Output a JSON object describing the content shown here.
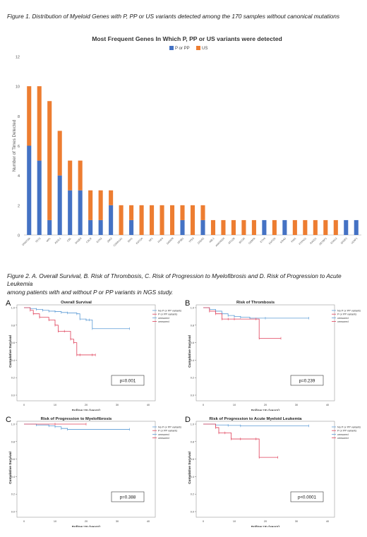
{
  "figure1": {
    "caption": "Figure 1. Distribution of Myeloid Genes with P, PP or US variants detected among the 170 samples without canonical mutations"
  },
  "figure2": {
    "caption_line1": "Figure 2. A. Overall Survival, B. Risk of Thrombosis, C. Risk of Progression to Myelofibrosis and D. Risk of Progression to Acute Leukemia",
    "caption_line2": "among patients with and without P or PP variants in NGS study."
  },
  "colors": {
    "p_pp": "#4472C4",
    "us": "#ED7D31",
    "no_variant_line": "#5B9BD5",
    "variant_line": "#E0405A"
  },
  "chart_data": [
    {
      "type": "bar",
      "stacked": true,
      "title": "Most Frequent Genes In Which P, PP or US variants were detected",
      "xlabel": "",
      "ylabel": "Number of Times Detected",
      "ylim": [
        0,
        12
      ],
      "yticks": [
        0,
        2,
        4,
        6,
        8,
        10,
        12
      ],
      "grid": false,
      "legend": "top-right",
      "categories": [
        "DNMT3A",
        "TET2",
        "MPL",
        "ASXL1",
        "CBL",
        "SH2B3",
        "CALR",
        "EZH2",
        "JAK2",
        "CSNK1A1",
        "IDH1",
        "KMT2A",
        "NF1",
        "PHF6",
        "SAMD9",
        "SF3B1",
        "TP53",
        "ZRSR2",
        "ABL1",
        "ANKRD26",
        "ATG2B",
        "BCOR",
        "CEBPA",
        "ETV6",
        "KMT2D",
        "KRAS",
        "PIM1",
        "PTPN11",
        "RAD21",
        "SETBP1",
        "STAG2",
        "SRSF2",
        "U2AF1"
      ],
      "series": [
        {
          "name": "P or PP",
          "values": [
            6,
            5,
            1,
            4,
            3,
            3,
            1,
            1,
            2,
            0,
            1,
            0,
            0,
            0,
            0,
            1,
            0,
            1,
            0,
            0,
            0,
            0,
            0,
            1,
            0,
            1,
            0,
            0,
            0,
            0,
            0,
            1,
            1
          ]
        },
        {
          "name": "US",
          "values": [
            4,
            5,
            8,
            3,
            2,
            2,
            2,
            2,
            1,
            2,
            1,
            2,
            2,
            2,
            2,
            1,
            2,
            1,
            1,
            1,
            1,
            1,
            1,
            0,
            1,
            0,
            1,
            1,
            1,
            1,
            1,
            0,
            0
          ]
        }
      ]
    },
    {
      "type": "line",
      "panel_label": "A",
      "title": "Overall Survival",
      "xlabel": "Follow Up (years)",
      "ylabel": "Cumulative Survival",
      "xlim": [
        0,
        40
      ],
      "xticks": [
        0,
        10,
        20,
        30,
        40
      ],
      "ylim": [
        0,
        1.0
      ],
      "yticks": [
        "0.0",
        "0.2",
        "0.4",
        "0.6",
        "0.8",
        "1.0"
      ],
      "p_value": "p=0.001",
      "legend_labels": [
        "No P or PP variants",
        "P or PP variants",
        "censored",
        "censored"
      ],
      "series": [
        {
          "name": "No P or PP variants",
          "x": [
            0,
            2,
            4,
            6,
            8,
            10,
            12,
            14,
            17,
            18,
            20,
            21,
            22,
            34
          ],
          "y": [
            1.0,
            0.99,
            0.98,
            0.97,
            0.96,
            0.955,
            0.945,
            0.94,
            0.93,
            0.87,
            0.86,
            0.86,
            0.76,
            0.76
          ]
        },
        {
          "name": "P or PP variants",
          "x": [
            0,
            2,
            3,
            5,
            8,
            10,
            11,
            13,
            15,
            16,
            17,
            18,
            22,
            23
          ],
          "y": [
            1.0,
            0.97,
            0.93,
            0.89,
            0.86,
            0.8,
            0.73,
            0.73,
            0.64,
            0.6,
            0.46,
            0.46,
            0.46,
            0.46
          ]
        }
      ]
    },
    {
      "type": "line",
      "panel_label": "B",
      "title": "Risk of Thrombosis",
      "xlabel": "Follow Up (years)",
      "ylabel": "Cumulative Survival",
      "xlim": [
        0,
        40
      ],
      "xticks": [
        0,
        10,
        20,
        30,
        40
      ],
      "ylim": [
        0,
        1.0
      ],
      "yticks": [
        "0.0",
        "0.2",
        "0.4",
        "0.6",
        "0.8",
        "1.0"
      ],
      "p_value": "p=0.239",
      "legend_labels": [
        "No P or PP variants",
        "P or PP variants",
        "censored",
        "censored"
      ],
      "series": [
        {
          "name": "No P or PP variants",
          "x": [
            0,
            2,
            4,
            6,
            8,
            10,
            12,
            15,
            20,
            34
          ],
          "y": [
            1.0,
            0.98,
            0.96,
            0.93,
            0.91,
            0.9,
            0.89,
            0.88,
            0.88,
            0.88
          ]
        },
        {
          "name": "P or PP variants",
          "x": [
            0,
            2,
            4,
            6,
            8,
            10,
            17,
            18,
            25
          ],
          "y": [
            1.0,
            0.96,
            0.93,
            0.87,
            0.87,
            0.87,
            0.87,
            0.65,
            0.65
          ]
        }
      ]
    },
    {
      "type": "line",
      "panel_label": "C",
      "title": "Risk of Progression to Myelofibrosis",
      "xlabel": "Follow Up (years)",
      "ylabel": "Cumulative Survival",
      "xlim": [
        0,
        40
      ],
      "xticks": [
        0,
        10,
        20,
        30,
        40
      ],
      "ylim": [
        0,
        1.0
      ],
      "yticks": [
        "0.0",
        "0.2",
        "0.4",
        "0.6",
        "0.8",
        "1.0"
      ],
      "p_value": "p=0.388",
      "legend_labels": [
        "No P or PP variants",
        "P or PP variants",
        "censored",
        "censored"
      ],
      "series": [
        {
          "name": "No P or PP variants",
          "x": [
            0,
            4,
            8,
            10,
            12,
            14,
            34
          ],
          "y": [
            1.0,
            0.99,
            0.98,
            0.97,
            0.95,
            0.94,
            0.94
          ]
        },
        {
          "name": "P or PP variants",
          "x": [
            0,
            10,
            20
          ],
          "y": [
            1.0,
            1.0,
            1.0
          ]
        }
      ]
    },
    {
      "type": "line",
      "panel_label": "D",
      "title": "Risk of Progression to Acute Myeloid Leukemia",
      "xlabel": "Follow Up (years)",
      "ylabel": "Cumulative Survival",
      "xlim": [
        0,
        40
      ],
      "xticks": [
        0,
        10,
        20,
        30,
        40
      ],
      "ylim": [
        0,
        1.0
      ],
      "yticks": [
        "0.0",
        "0.2",
        "0.4",
        "0.6",
        "0.8",
        "1.0"
      ],
      "p_value": "p<0.0001",
      "legend_labels": [
        "No P or PP variants",
        "P or PP variants",
        "censored",
        "censored"
      ],
      "series": [
        {
          "name": "No P or PP variants",
          "x": [
            0,
            4,
            8,
            12,
            34
          ],
          "y": [
            1.0,
            0.99,
            0.985,
            0.98,
            0.98
          ]
        },
        {
          "name": "P or PP variants",
          "x": [
            0,
            4,
            5,
            7,
            9,
            12,
            17,
            18,
            24
          ],
          "y": [
            1.0,
            0.96,
            0.9,
            0.9,
            0.83,
            0.83,
            0.83,
            0.62,
            0.62
          ]
        }
      ]
    }
  ]
}
